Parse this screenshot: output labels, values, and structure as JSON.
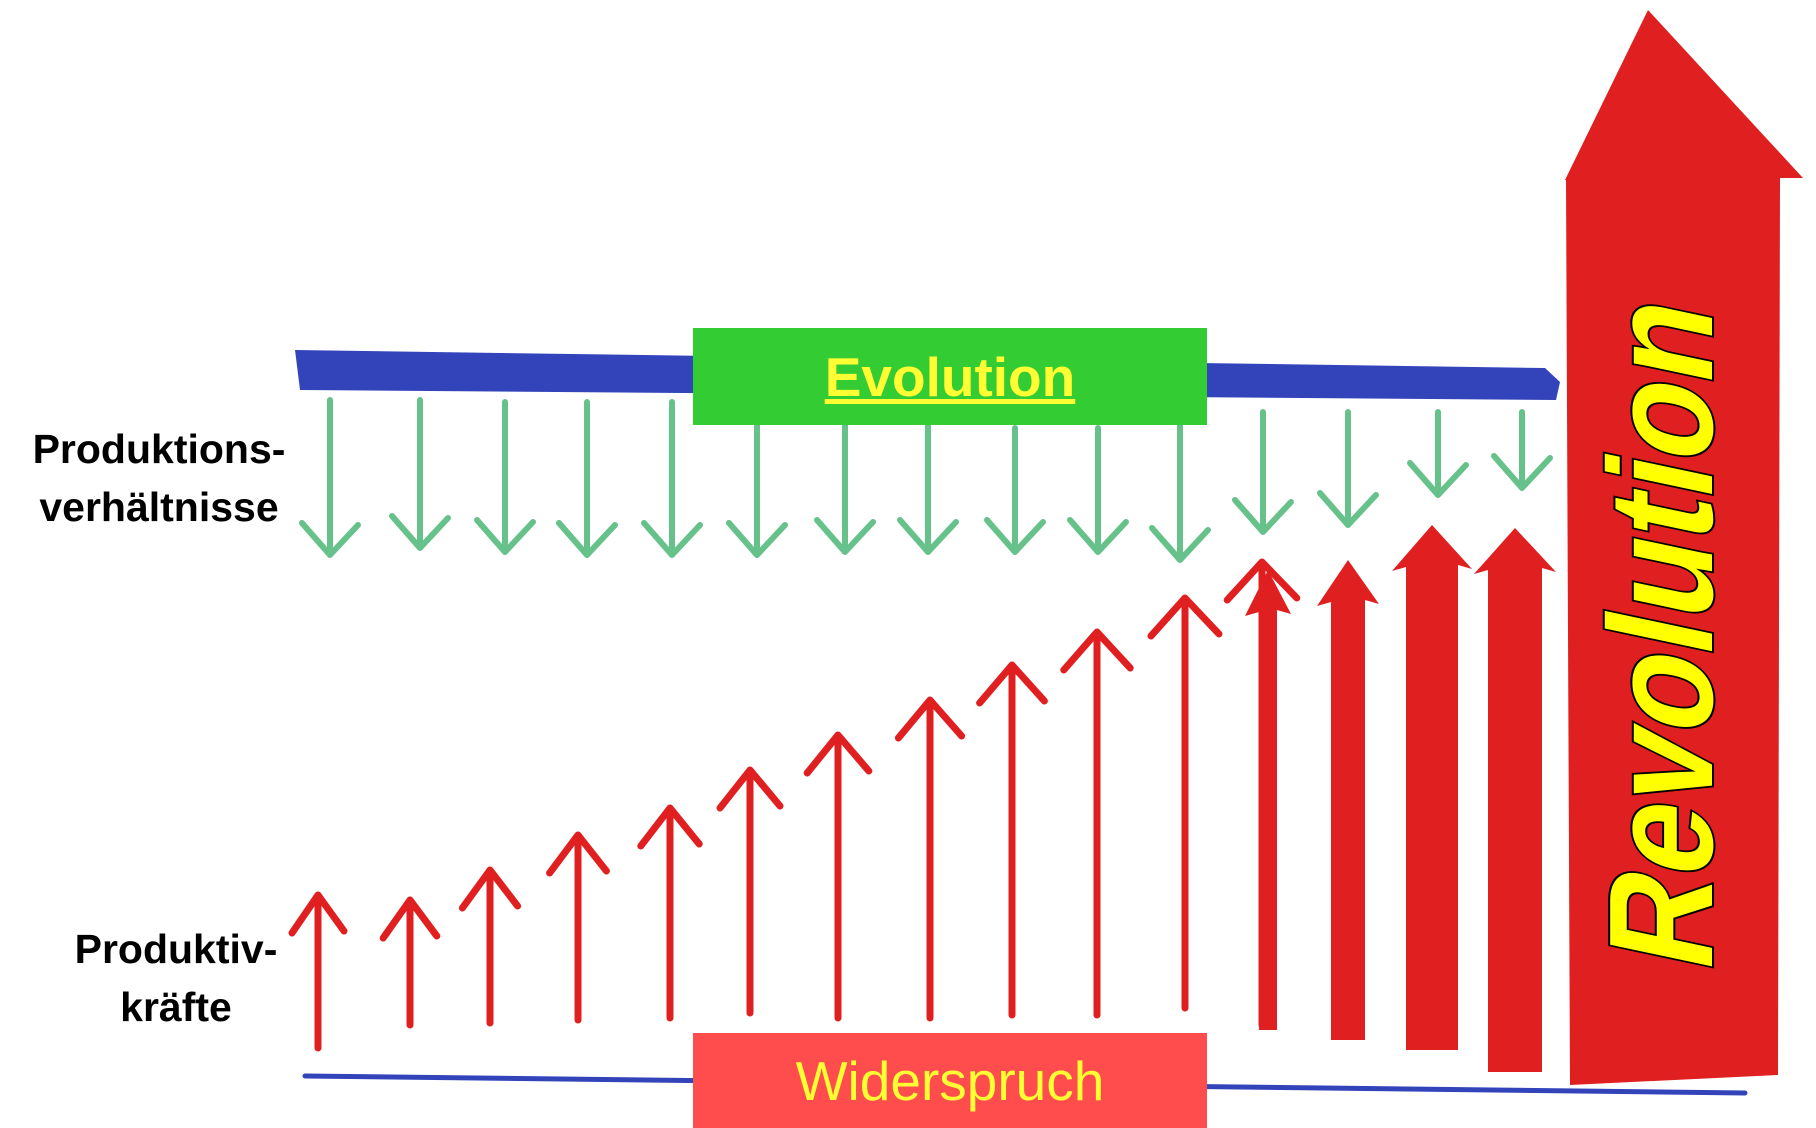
{
  "labels": {
    "production_relations": [
      "Produktions-",
      "verhältnisse"
    ],
    "productive_forces": [
      "Produktiv-",
      "kräfte"
    ],
    "evolution": "Evolution",
    "contradiction": "Widerspruch",
    "revolution": "Revolution"
  },
  "colors": {
    "evolution_box": "#33cc33",
    "evolution_text": "#ffff33",
    "contradiction_box": "#ff4d4d",
    "contradiction_text": "#ffff33",
    "blue_bar": "#3344bb",
    "green_arrows": "#66c28a",
    "red_arrows": "#e02020",
    "revolution_text": "#ffff00"
  },
  "icons": {
    "downward_arrows": "arrow-down-icon",
    "upward_arrows": "arrow-up-icon",
    "revolution_arrow": "big-arrow-up-icon"
  }
}
